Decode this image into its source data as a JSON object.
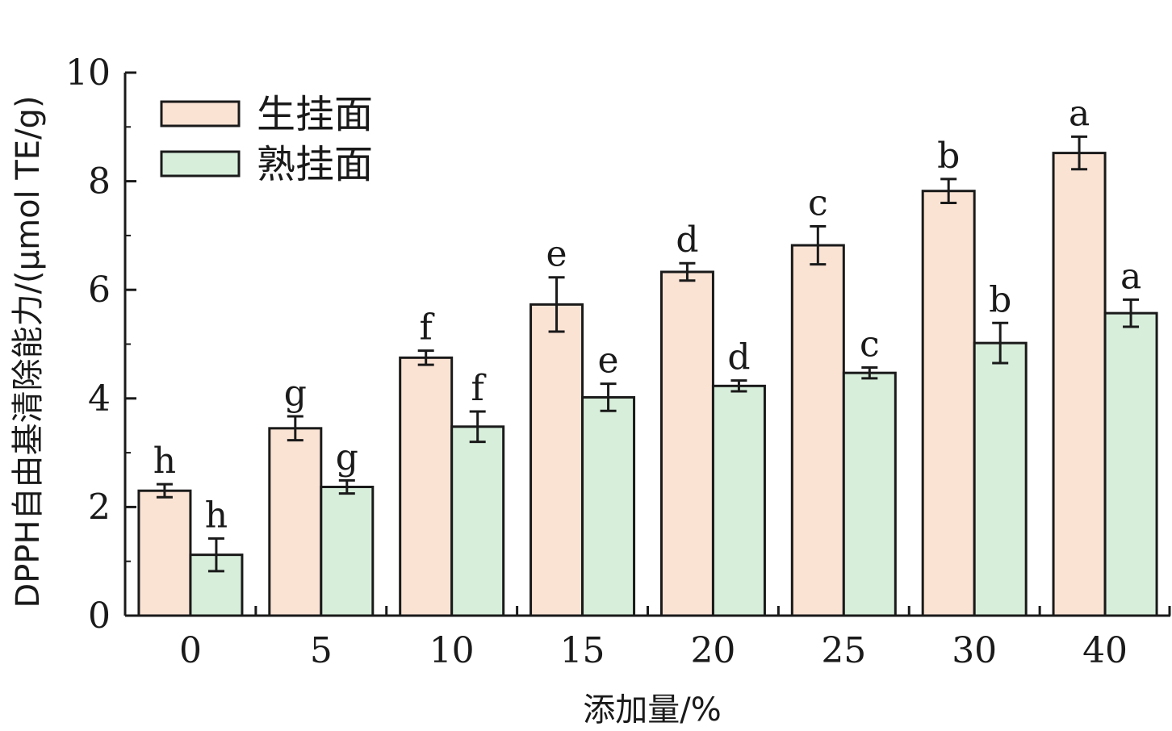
{
  "chart_data": {
    "type": "bar",
    "title": "",
    "xlabel": "添加量/%",
    "ylabel": "DPPH自由基清除能力/(μmol TE/g)",
    "categories": [
      "0",
      "5",
      "10",
      "15",
      "20",
      "25",
      "30",
      "40"
    ],
    "ylim": [
      0,
      10
    ],
    "yticks": [
      "0",
      "2",
      "4",
      "6",
      "8",
      "10"
    ],
    "grid": false,
    "legend_position": "top-left",
    "series": [
      {
        "name": "生挂面",
        "color": "#fbe3d4",
        "values": [
          2.3,
          3.45,
          4.75,
          5.73,
          6.33,
          6.82,
          7.82,
          8.52
        ],
        "errors": [
          0.12,
          0.22,
          0.13,
          0.5,
          0.16,
          0.35,
          0.22,
          0.3
        ],
        "labels": [
          "h",
          "g",
          "f",
          "e",
          "d",
          "c",
          "b",
          "a"
        ]
      },
      {
        "name": "熟挂面",
        "color": "#d7eedb",
        "values": [
          1.12,
          2.37,
          3.48,
          4.02,
          4.23,
          4.47,
          5.02,
          5.57
        ],
        "errors": [
          0.3,
          0.12,
          0.28,
          0.25,
          0.1,
          0.1,
          0.37,
          0.25
        ],
        "labels": [
          "h",
          "g",
          "f",
          "e",
          "d",
          "c",
          "b",
          "a"
        ]
      }
    ]
  }
}
